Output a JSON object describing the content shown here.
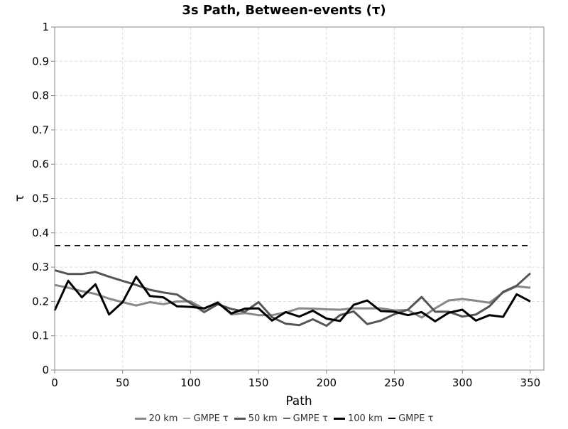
{
  "chart_data": {
    "type": "line",
    "title": "3s Path, Between-events (τ)",
    "xlabel": "Path",
    "ylabel": "τ",
    "xlim": [
      0,
      360
    ],
    "ylim": [
      0,
      1
    ],
    "xticks": [
      0,
      50,
      100,
      150,
      200,
      250,
      300,
      350
    ],
    "yticks": [
      0,
      0.1,
      0.2,
      0.3,
      0.4,
      0.5,
      0.6,
      0.7,
      0.8,
      0.9,
      1
    ],
    "ytick_labels": [
      "0",
      "0.1",
      "0.2",
      "0.3",
      "0.4",
      "0.5",
      "0.6",
      "0.7",
      "0.8",
      "0.9",
      "1"
    ],
    "grid": true,
    "legend_position": "bottom-center",
    "x": [
      0,
      10,
      20,
      30,
      40,
      50,
      60,
      70,
      80,
      90,
      100,
      110,
      120,
      130,
      140,
      150,
      160,
      170,
      180,
      190,
      200,
      210,
      220,
      230,
      240,
      250,
      260,
      270,
      280,
      290,
      300,
      310,
      320,
      330,
      340,
      350
    ],
    "series": [
      {
        "name": "20 km",
        "color": "#888888",
        "width": 3,
        "dashed": false,
        "values": [
          0.248,
          0.24,
          0.23,
          0.222,
          0.208,
          0.198,
          0.188,
          0.198,
          0.192,
          0.2,
          0.2,
          0.178,
          0.198,
          0.162,
          0.166,
          0.16,
          0.16,
          0.168,
          0.18,
          0.179,
          0.177,
          0.176,
          0.18,
          0.18,
          0.18,
          0.174,
          0.175,
          0.153,
          0.18,
          0.203,
          0.207,
          0.202,
          0.196,
          0.226,
          0.244,
          0.24
        ]
      },
      {
        "name": "GMPE τ",
        "color": "#aaaaaa",
        "width": 1.5,
        "dashed": true,
        "values": [
          0.363,
          0.363,
          0.363,
          0.363,
          0.363,
          0.363,
          0.363,
          0.363,
          0.363,
          0.363,
          0.363,
          0.363,
          0.363,
          0.363,
          0.363,
          0.363,
          0.363,
          0.363,
          0.363,
          0.363,
          0.363,
          0.363,
          0.363,
          0.363,
          0.363,
          0.363,
          0.363,
          0.363,
          0.363,
          0.363,
          0.363,
          0.363,
          0.363,
          0.363,
          0.363,
          0.363
        ]
      },
      {
        "name": "50 km",
        "color": "#555555",
        "width": 3,
        "dashed": false,
        "values": [
          0.291,
          0.28,
          0.28,
          0.286,
          0.272,
          0.26,
          0.248,
          0.234,
          0.226,
          0.22,
          0.195,
          0.169,
          0.192,
          0.178,
          0.17,
          0.198,
          0.154,
          0.135,
          0.131,
          0.148,
          0.129,
          0.16,
          0.171,
          0.134,
          0.144,
          0.163,
          0.176,
          0.213,
          0.17,
          0.17,
          0.156,
          0.162,
          0.186,
          0.228,
          0.246,
          0.282
        ]
      },
      {
        "name": "GMPE τ",
        "color": "#666666",
        "width": 1.5,
        "dashed": true,
        "values": [
          0.363,
          0.363,
          0.363,
          0.363,
          0.363,
          0.363,
          0.363,
          0.363,
          0.363,
          0.363,
          0.363,
          0.363,
          0.363,
          0.363,
          0.363,
          0.363,
          0.363,
          0.363,
          0.363,
          0.363,
          0.363,
          0.363,
          0.363,
          0.363,
          0.363,
          0.363,
          0.363,
          0.363,
          0.363,
          0.363,
          0.363,
          0.363,
          0.363,
          0.363,
          0.363,
          0.363
        ]
      },
      {
        "name": "100 km",
        "color": "#000000",
        "width": 3,
        "dashed": false,
        "values": [
          0.174,
          0.26,
          0.212,
          0.25,
          0.162,
          0.198,
          0.272,
          0.216,
          0.212,
          0.186,
          0.184,
          0.18,
          0.196,
          0.165,
          0.179,
          0.18,
          0.144,
          0.169,
          0.156,
          0.173,
          0.15,
          0.143,
          0.19,
          0.203,
          0.172,
          0.17,
          0.16,
          0.169,
          0.142,
          0.167,
          0.176,
          0.144,
          0.16,
          0.155,
          0.221,
          0.2
        ]
      },
      {
        "name": "GMPE τ",
        "color": "#000000",
        "width": 1.5,
        "dashed": true,
        "values": [
          0.363,
          0.363,
          0.363,
          0.363,
          0.363,
          0.363,
          0.363,
          0.363,
          0.363,
          0.363,
          0.363,
          0.363,
          0.363,
          0.363,
          0.363,
          0.363,
          0.363,
          0.363,
          0.363,
          0.363,
          0.363,
          0.363,
          0.363,
          0.363,
          0.363,
          0.363,
          0.363,
          0.363,
          0.363,
          0.363,
          0.363,
          0.363,
          0.363,
          0.363,
          0.363,
          0.363
        ]
      }
    ]
  }
}
